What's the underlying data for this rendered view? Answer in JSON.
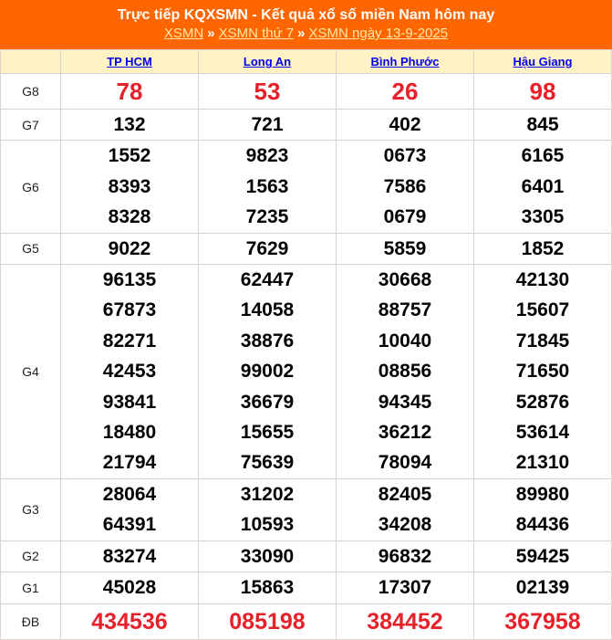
{
  "header": {
    "title": "Trực tiếp KQXSMN - Kết quả xổ số miền Nam hôm nay",
    "breadcrumbs": [
      "XSMN",
      "XSMN thứ 7",
      "XSMN ngày 13-9-2025"
    ],
    "separator": "»"
  },
  "provinces": [
    "TP HCM",
    "Long An",
    "Bình Phước",
    "Hậu Giang"
  ],
  "prizes": [
    {
      "label": "G8",
      "special": true,
      "values": [
        [
          "78"
        ],
        [
          "53"
        ],
        [
          "26"
        ],
        [
          "98"
        ]
      ]
    },
    {
      "label": "G7",
      "values": [
        [
          "132"
        ],
        [
          "721"
        ],
        [
          "402"
        ],
        [
          "845"
        ]
      ]
    },
    {
      "label": "G6",
      "values": [
        [
          "1552",
          "8393",
          "8328"
        ],
        [
          "9823",
          "1563",
          "7235"
        ],
        [
          "0673",
          "7586",
          "0679"
        ],
        [
          "6165",
          "6401",
          "3305"
        ]
      ]
    },
    {
      "label": "G5",
      "values": [
        [
          "9022"
        ],
        [
          "7629"
        ],
        [
          "5859"
        ],
        [
          "1852"
        ]
      ]
    },
    {
      "label": "G4",
      "values": [
        [
          "96135",
          "67873",
          "82271",
          "42453",
          "93841",
          "18480",
          "21794"
        ],
        [
          "62447",
          "14058",
          "38876",
          "99002",
          "36679",
          "15655",
          "75639"
        ],
        [
          "30668",
          "88757",
          "10040",
          "08856",
          "94345",
          "36212",
          "78094"
        ],
        [
          "42130",
          "15607",
          "71845",
          "71650",
          "52876",
          "53614",
          "21310"
        ]
      ]
    },
    {
      "label": "G3",
      "values": [
        [
          "28064",
          "64391"
        ],
        [
          "31202",
          "10593"
        ],
        [
          "82405",
          "34208"
        ],
        [
          "89980",
          "84436"
        ]
      ]
    },
    {
      "label": "G2",
      "values": [
        [
          "83274"
        ],
        [
          "33090"
        ],
        [
          "96832"
        ],
        [
          "59425"
        ]
      ]
    },
    {
      "label": "G1",
      "values": [
        [
          "45028"
        ],
        [
          "15863"
        ],
        [
          "17307"
        ],
        [
          "02139"
        ]
      ]
    },
    {
      "label": "ĐB",
      "special": true,
      "values": [
        [
          "434536"
        ],
        [
          "085198"
        ],
        [
          "384452"
        ],
        [
          "367958"
        ]
      ]
    }
  ],
  "colors": {
    "header_bg": "#ff6600",
    "province_row_bg": "#fff2c4",
    "special_number": "#e8202a",
    "link": "#0000ee"
  }
}
